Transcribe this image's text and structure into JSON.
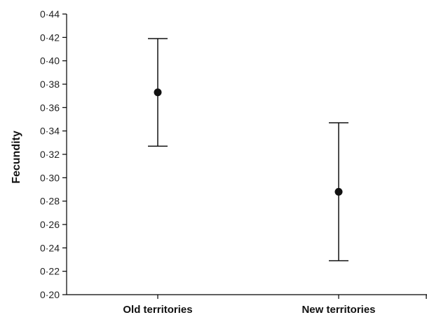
{
  "chart_data": {
    "type": "scatter",
    "title": "",
    "xlabel": "",
    "ylabel": "Fecundity",
    "ylim": [
      0.2,
      0.44
    ],
    "yticks": [
      "0·20",
      "0·22",
      "0·24",
      "0·26",
      "0·28",
      "0·30",
      "0·32",
      "0·34",
      "0·36",
      "0·38",
      "0·40",
      "0·42",
      "0·44"
    ],
    "categories": [
      "Old territories",
      "New territories"
    ],
    "series": [
      {
        "values": [
          0.373,
          0.288
        ],
        "error_low": [
          0.327,
          0.229
        ],
        "error_high": [
          0.419,
          0.347
        ]
      }
    ],
    "grid": false,
    "legend": "none",
    "colors": {
      "axis": "#000000",
      "marker": "#111111",
      "text": "#222222"
    }
  }
}
